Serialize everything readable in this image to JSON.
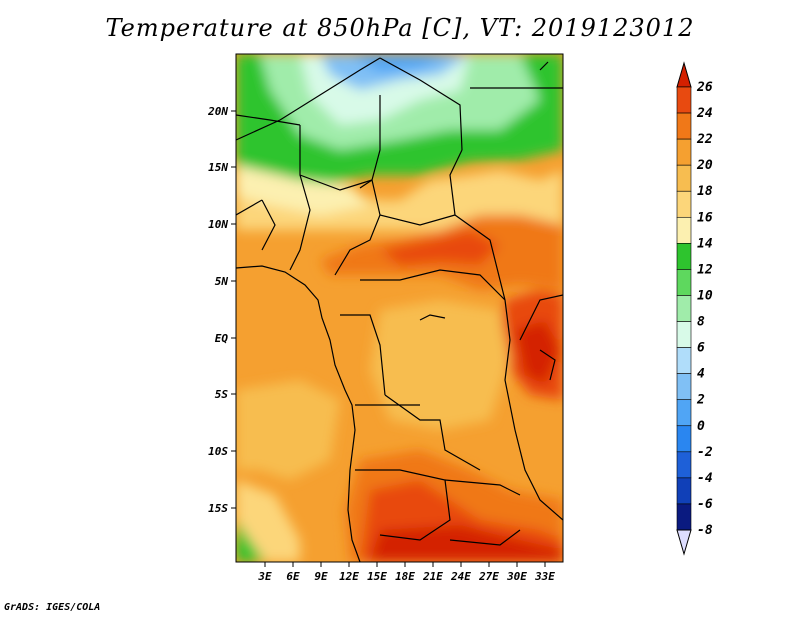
{
  "title": "Temperature at 850hPa [C], VT: 2019123012",
  "credit": "GrADS: IGES/COLA",
  "map": {
    "lon_labels": [
      "3E",
      "6E",
      "9E",
      "12E",
      "15E",
      "18E",
      "21E",
      "24E",
      "27E",
      "30E",
      "33E"
    ],
    "lat_labels": [
      "20N",
      "15N",
      "10N",
      "5N",
      "EQ",
      "5S",
      "10S",
      "15S"
    ]
  },
  "colorbar": {
    "levels": [
      "26",
      "24",
      "22",
      "20",
      "18",
      "16",
      "14",
      "12",
      "10",
      "8",
      "6",
      "4",
      "2",
      "0",
      "-2",
      "-4",
      "-6",
      "-8"
    ],
    "colors": [
      "#d42000",
      "#e84a10",
      "#f07818",
      "#f5a030",
      "#f7bd50",
      "#fcd67a",
      "#fcf0b0",
      "#2ec42e",
      "#5ed85e",
      "#a0ecaa",
      "#d8fae8",
      "#b0ddfa",
      "#80c0f5",
      "#50a5f5",
      "#2a86f0",
      "#1e60d8",
      "#1040b8",
      "#0a1a80",
      "#000060"
    ]
  }
}
